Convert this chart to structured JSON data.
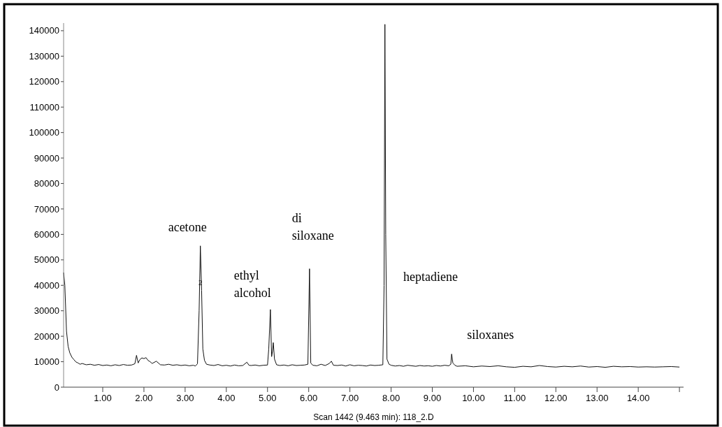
{
  "chart_data": {
    "type": "line",
    "x": [
      0.05,
      0.08,
      0.12,
      0.16,
      0.2,
      0.25,
      0.3,
      0.35,
      0.4,
      0.45,
      0.5,
      0.6,
      0.7,
      0.8,
      0.9,
      1.0,
      1.1,
      1.2,
      1.3,
      1.4,
      1.5,
      1.6,
      1.7,
      1.78,
      1.82,
      1.86,
      1.9,
      1.95,
      2.0,
      2.05,
      2.1,
      2.15,
      2.2,
      2.3,
      2.4,
      2.5,
      2.6,
      2.7,
      2.8,
      2.9,
      3.0,
      3.1,
      3.2,
      3.25,
      3.3,
      3.34,
      3.37,
      3.4,
      3.43,
      3.47,
      3.52,
      3.6,
      3.7,
      3.8,
      3.9,
      4.0,
      4.1,
      4.2,
      4.3,
      4.4,
      4.5,
      4.55,
      4.6,
      4.7,
      4.8,
      4.9,
      5.0,
      5.03,
      5.07,
      5.1,
      5.12,
      5.14,
      5.17,
      5.22,
      5.3,
      5.4,
      5.5,
      5.6,
      5.7,
      5.8,
      5.9,
      5.98,
      6.02,
      6.05,
      6.1,
      6.2,
      6.3,
      6.4,
      6.5,
      6.55,
      6.6,
      6.7,
      6.8,
      6.9,
      7.0,
      7.1,
      7.2,
      7.3,
      7.4,
      7.5,
      7.6,
      7.7,
      7.8,
      7.83,
      7.85,
      7.87,
      7.9,
      7.95,
      8.0,
      8.1,
      8.2,
      8.3,
      8.4,
      8.5,
      8.6,
      8.7,
      8.8,
      8.9,
      9.0,
      9.1,
      9.2,
      9.3,
      9.4,
      9.45,
      9.47,
      9.5,
      9.55,
      9.6,
      9.8,
      10.0,
      10.2,
      10.4,
      10.6,
      10.8,
      11.0,
      11.2,
      11.4,
      11.6,
      11.8,
      12.0,
      12.2,
      12.4,
      12.6,
      12.8,
      13.0,
      13.2,
      13.4,
      13.6,
      13.8,
      14.0,
      14.2,
      14.4,
      14.6,
      14.8,
      15.0
    ],
    "series": [
      {
        "color": "#111111",
        "values": [
          45000,
          40000,
          22000,
          16000,
          13500,
          11800,
          10800,
          9900,
          9500,
          9000,
          9300,
          8800,
          9000,
          8600,
          8900,
          8500,
          8700,
          8400,
          8800,
          8500,
          8900,
          8600,
          8700,
          9200,
          12500,
          9500,
          10800,
          11500,
          11200,
          11600,
          10500,
          10000,
          9300,
          10200,
          8800,
          8700,
          9000,
          8600,
          8800,
          8500,
          8700,
          8400,
          8600,
          8300,
          9200,
          30000,
          55500,
          38000,
          15000,
          10500,
          9000,
          8700,
          8500,
          8900,
          8400,
          8600,
          8300,
          8700,
          8400,
          8500,
          9800,
          8600,
          8500,
          8700,
          8400,
          8600,
          8700,
          15000,
          30500,
          12000,
          14000,
          17500,
          11000,
          8800,
          8500,
          8700,
          8400,
          8800,
          8500,
          8600,
          8700,
          9000,
          46500,
          9500,
          8600,
          8400,
          9000,
          8500,
          9300,
          10200,
          8600,
          8500,
          8700,
          8300,
          8800,
          8400,
          8600,
          8500,
          8300,
          8700,
          8500,
          8600,
          8800,
          40000,
          142500,
          60000,
          11000,
          9000,
          8600,
          8300,
          8500,
          8200,
          8600,
          8400,
          8200,
          8500,
          8300,
          8400,
          8200,
          8500,
          8300,
          8600,
          8400,
          9000,
          13000,
          9500,
          8600,
          8200,
          8400,
          8000,
          8300,
          8100,
          8400,
          8000,
          7800,
          8200,
          8000,
          8500,
          8100,
          7900,
          8200,
          8000,
          8300,
          7900,
          8100,
          7800,
          8200,
          8000,
          8100,
          7900,
          8000,
          7900,
          8000,
          8100,
          7900
        ]
      }
    ],
    "xlim": [
      0.05,
      15.1
    ],
    "ylim": [
      0,
      143000
    ],
    "xticks": [
      {
        "value": 1,
        "label": "1.00"
      },
      {
        "value": 2,
        "label": "2.00"
      },
      {
        "value": 3,
        "label": "3.00"
      },
      {
        "value": 4,
        "label": "4.00"
      },
      {
        "value": 5,
        "label": "5.00"
      },
      {
        "value": 6,
        "label": "6.00"
      },
      {
        "value": 7,
        "label": "7.00"
      },
      {
        "value": 8,
        "label": "8.00"
      },
      {
        "value": 9,
        "label": "9.00"
      },
      {
        "value": 10,
        "label": "10.00"
      },
      {
        "value": 11,
        "label": "11.00"
      },
      {
        "value": 12,
        "label": "12.00"
      },
      {
        "value": 13,
        "label": "13.00"
      },
      {
        "value": 14,
        "label": "14.00"
      },
      {
        "value": 15,
        "label": null
      }
    ],
    "yticks": [
      0,
      10000,
      20000,
      30000,
      40000,
      50000,
      60000,
      70000,
      80000,
      90000,
      100000,
      110000,
      120000,
      130000,
      140000
    ],
    "annotations": [
      {
        "text": "acetone",
        "x": 3.37,
        "y": 55500
      },
      {
        "text": "2",
        "x": 3.37,
        "y": 40000
      },
      {
        "text": "ethyl\nalcohol",
        "x": 5.07,
        "y": 30500
      },
      {
        "text": "di\nsiloxane",
        "x": 6.02,
        "y": 46500
      },
      "heptadiene",
      {
        "text": "siloxanes",
        "x": 9.47,
        "y": 13000
      },
      "Scan 1442 (9.463 min): 118_2.D"
    ],
    "grid": false,
    "marker": "none",
    "line_style": "solid"
  }
}
